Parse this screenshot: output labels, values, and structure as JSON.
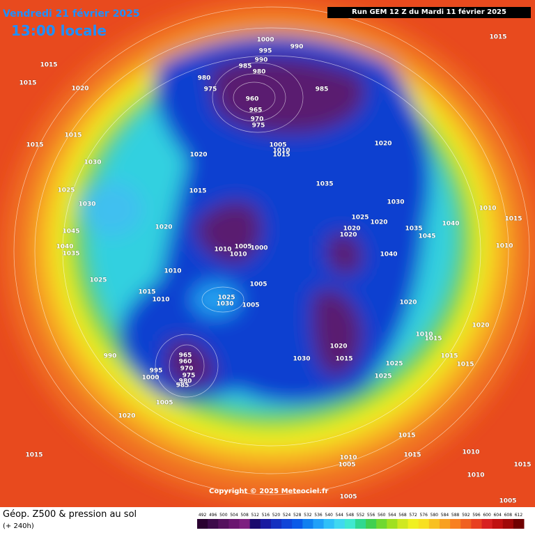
{
  "header": {
    "date": "Vendredi 21 février 2025",
    "time": "13:00 locale",
    "run": "Run GEM 12 Z du Mardi 11 février 2025"
  },
  "copyright": "Copyright © 2025 Meteociel.fr",
  "footer": {
    "title": "Géop. Z500 & pression au sol",
    "lead": "(+ 240h)"
  },
  "colorbar": {
    "ticks": [
      492,
      496,
      500,
      504,
      508,
      512,
      516,
      520,
      524,
      528,
      532,
      536,
      540,
      544,
      548,
      552,
      556,
      560,
      564,
      568,
      572,
      576,
      580,
      584,
      588,
      592,
      596,
      600,
      604,
      608,
      612
    ],
    "colors": [
      "#2a0030",
      "#3d0a4a",
      "#55115e",
      "#6a1670",
      "#7d2080",
      "#1a0a6e",
      "#1a1aa0",
      "#1530c0",
      "#1045d8",
      "#0a5ae8",
      "#1080f0",
      "#20a0f8",
      "#30c0f8",
      "#40d8f0",
      "#40e8d0",
      "#30d890",
      "#40d050",
      "#70d830",
      "#a0e020",
      "#d0e820",
      "#f0f020",
      "#f8e020",
      "#f8c020",
      "#f8a020",
      "#f88020",
      "#f06020",
      "#e84020",
      "#d82020",
      "#c01010",
      "#a00808",
      "#700000"
    ]
  },
  "pressure_labels": [
    1015,
    1015,
    1015,
    1020,
    1015,
    1015,
    1000,
    995,
    990,
    985,
    980,
    980,
    975,
    960,
    965,
    970,
    975,
    985,
    990,
    1005,
    1010,
    1015,
    1020,
    1020,
    1030,
    1035,
    1025,
    1030,
    1015,
    1020,
    1045,
    1040,
    1035,
    1010,
    1005,
    1010,
    1000,
    1025,
    1020,
    1020,
    1020,
    1030,
    1035,
    1045,
    1040,
    1010,
    1015,
    1010,
    1040,
    1010,
    1025,
    1015,
    1010,
    1005,
    1005,
    1030,
    1025,
    1020,
    1020,
    1010,
    1015,
    1020,
    1015,
    1030,
    1025,
    1025,
    1015,
    1015,
    965,
    960,
    970,
    975,
    980,
    985,
    1000,
    995,
    990,
    1005,
    1020,
    1015,
    1015,
    1010,
    1005,
    1015,
    1010,
    1010,
    1015,
    1005,
    1005
  ]
}
